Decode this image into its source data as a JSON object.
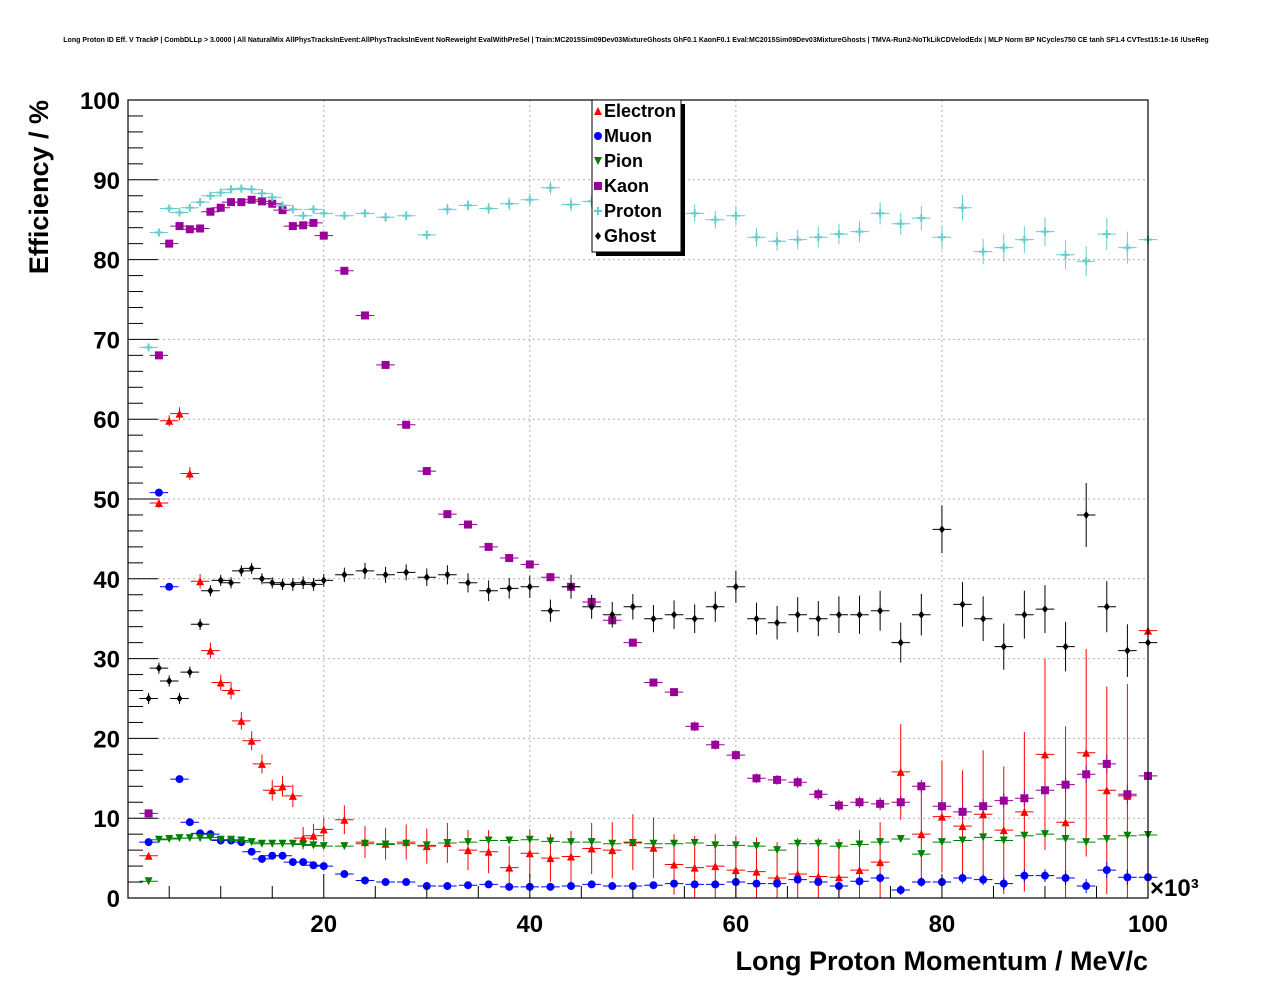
{
  "chart_data": {
    "type": "scatter",
    "title": "Long Proton ID Eff. V TrackP | CombDLLp > 3.0000 | All NaturalMix AllPhysTracksInEvent:AllPhysTracksInEvent NoReweight EvalWithPreSel | Train:MC2015Sim09Dev03MixtureGhosts GhF0.1 KaonF0.1 Eval:MC2015Sim09Dev03MixtureGhosts | TMVA-Run2-NoTkLikCDVelodEdx | MLP Norm BP NCycles750 CE tanh SF1.4 CVTest15:1e-16 !UseReg",
    "xlabel": "Long Proton Momentum / MeV/c",
    "ylabel": "Efficiency / %",
    "x_multiplier": "×10³",
    "xlim": [
      1,
      100
    ],
    "ylim": [
      0,
      100
    ],
    "x_ticks": [
      "20",
      "40",
      "60",
      "80",
      "100"
    ],
    "y_ticks": [
      "0",
      "10",
      "20",
      "30",
      "40",
      "50",
      "60",
      "70",
      "80",
      "90",
      "100"
    ],
    "grid": true,
    "legend_position": "top-center",
    "series": [
      {
        "name": "Electron",
        "color": "#ff0000",
        "marker": "triangle-up",
        "x": [
          3,
          4,
          5,
          6,
          7,
          8,
          9,
          10,
          11,
          12,
          13,
          14,
          15,
          16,
          17,
          18,
          19,
          20,
          22,
          24,
          26,
          28,
          30,
          32,
          34,
          36,
          38,
          40,
          42,
          44,
          46,
          48,
          50,
          52,
          54,
          56,
          58,
          60,
          62,
          64,
          66,
          68,
          70,
          72,
          74,
          76,
          78,
          80,
          82,
          84,
          86,
          88,
          90,
          92,
          94,
          96,
          98,
          100
        ],
        "y": [
          5.3,
          49.5,
          59.8,
          60.7,
          53.2,
          39.7,
          31.0,
          27.0,
          26.0,
          22.2,
          19.7,
          16.8,
          13.5,
          14.0,
          12.8,
          7.5,
          7.8,
          8.6,
          9.8,
          7.0,
          6.8,
          7.0,
          6.5,
          6.9,
          6.0,
          5.8,
          3.8,
          5.6,
          5.0,
          5.2,
          6.2,
          6.0,
          7.0,
          6.3,
          4.2,
          3.8,
          4.0,
          3.5,
          3.3,
          2.5,
          3.0,
          2.7,
          2.6,
          3.5,
          4.5,
          15.8,
          8.0,
          10.2,
          9.0,
          10.5,
          8.5,
          10.8,
          18.0,
          9.5,
          18.2,
          13.5,
          12.8,
          33.5
        ],
        "yerr": [
          0.4,
          0.6,
          0.7,
          0.8,
          0.8,
          0.9,
          1.0,
          1.0,
          1.1,
          1.1,
          1.2,
          1.2,
          1.3,
          1.3,
          1.4,
          1.4,
          1.5,
          1.5,
          1.8,
          2.0,
          2.0,
          2.2,
          2.2,
          2.5,
          2.5,
          2.7,
          2.7,
          3.0,
          3.0,
          3.2,
          3.2,
          3.5,
          3.5,
          3.8,
          3.8,
          4.0,
          4.0,
          4.3,
          4.3,
          4.5,
          4.5,
          4.8,
          4.8,
          5.0,
          5.0,
          6.0,
          6.0,
          7.0,
          7.0,
          8.0,
          8.0,
          10.0,
          12.0,
          12.0,
          13.0,
          13.0,
          14.0,
          14.0
        ]
      },
      {
        "name": "Muon",
        "color": "#0000ff",
        "marker": "circle",
        "x": [
          3,
          4,
          5,
          6,
          7,
          8,
          9,
          10,
          11,
          12,
          13,
          14,
          15,
          16,
          17,
          18,
          19,
          20,
          22,
          24,
          26,
          28,
          30,
          32,
          34,
          36,
          38,
          40,
          42,
          44,
          46,
          48,
          50,
          52,
          54,
          56,
          58,
          60,
          62,
          64,
          66,
          68,
          70,
          72,
          74,
          76,
          78,
          80,
          82,
          84,
          86,
          88,
          90,
          92,
          94,
          96,
          98,
          100
        ],
        "y": [
          7.0,
          50.8,
          39.0,
          14.9,
          9.5,
          8.1,
          8.0,
          7.2,
          7.2,
          7.0,
          5.8,
          4.9,
          5.3,
          5.3,
          4.5,
          4.5,
          4.1,
          4.0,
          3.0,
          2.2,
          2.0,
          2.0,
          1.5,
          1.5,
          1.6,
          1.7,
          1.4,
          1.4,
          1.4,
          1.5,
          1.7,
          1.5,
          1.5,
          1.6,
          1.8,
          1.7,
          1.7,
          2.0,
          1.8,
          1.8,
          2.3,
          2.0,
          1.5,
          2.1,
          2.5,
          1.0,
          2.0,
          2.0,
          2.5,
          2.3,
          1.8,
          2.8,
          2.8,
          2.5,
          1.5,
          3.5,
          2.6,
          2.6
        ],
        "yerr": [
          0.2,
          0.4,
          0.4,
          0.3,
          0.3,
          0.2,
          0.2,
          0.2,
          0.2,
          0.2,
          0.2,
          0.2,
          0.2,
          0.2,
          0.2,
          0.2,
          0.2,
          0.2,
          0.2,
          0.2,
          0.2,
          0.2,
          0.2,
          0.2,
          0.2,
          0.2,
          0.2,
          0.3,
          0.3,
          0.3,
          0.3,
          0.3,
          0.3,
          0.3,
          0.3,
          0.4,
          0.4,
          0.4,
          0.4,
          0.5,
          0.5,
          0.5,
          0.5,
          0.5,
          0.6,
          0.6,
          0.6,
          0.7,
          0.7,
          0.7,
          0.8,
          0.8,
          0.8,
          0.9,
          0.9,
          1.0,
          1.0,
          1.0
        ]
      },
      {
        "name": "Pion",
        "color": "#008000",
        "marker": "triangle-down",
        "x": [
          3,
          4,
          5,
          6,
          7,
          8,
          9,
          10,
          11,
          12,
          13,
          14,
          15,
          16,
          17,
          18,
          19,
          20,
          22,
          24,
          26,
          28,
          30,
          32,
          34,
          36,
          38,
          40,
          42,
          44,
          46,
          48,
          50,
          52,
          54,
          56,
          58,
          60,
          62,
          64,
          66,
          68,
          70,
          72,
          74,
          76,
          78,
          80,
          82,
          84,
          86,
          88,
          90,
          92,
          94,
          96,
          98,
          100
        ],
        "y": [
          2.1,
          7.3,
          7.4,
          7.5,
          7.5,
          7.5,
          7.6,
          7.3,
          7.3,
          7.2,
          7.0,
          6.8,
          6.8,
          6.8,
          6.8,
          6.7,
          6.6,
          6.5,
          6.5,
          6.8,
          6.7,
          6.8,
          6.6,
          6.9,
          7.0,
          7.2,
          7.2,
          7.3,
          7.1,
          7.0,
          7.0,
          6.8,
          6.9,
          6.8,
          6.8,
          6.9,
          6.6,
          6.6,
          6.5,
          6.0,
          6.8,
          6.8,
          6.5,
          6.7,
          7.0,
          7.4,
          5.5,
          7.0,
          7.2,
          7.6,
          7.2,
          7.8,
          8.0,
          7.4,
          7.0,
          7.4,
          7.8,
          7.9
        ],
        "yerr": [
          0.1,
          0.1,
          0.1,
          0.1,
          0.1,
          0.1,
          0.1,
          0.1,
          0.1,
          0.1,
          0.1,
          0.1,
          0.1,
          0.1,
          0.1,
          0.1,
          0.1,
          0.1,
          0.1,
          0.1,
          0.1,
          0.1,
          0.1,
          0.1,
          0.1,
          0.1,
          0.1,
          0.1,
          0.1,
          0.1,
          0.1,
          0.2,
          0.2,
          0.2,
          0.2,
          0.2,
          0.2,
          0.2,
          0.2,
          0.2,
          0.3,
          0.3,
          0.3,
          0.3,
          0.3,
          0.3,
          0.3,
          0.4,
          0.4,
          0.4,
          0.4,
          0.4,
          0.4,
          0.5,
          0.5,
          0.5,
          0.5,
          0.5
        ]
      },
      {
        "name": "Kaon",
        "color": "#990099",
        "marker": "square",
        "x": [
          3,
          4,
          5,
          6,
          7,
          8,
          9,
          10,
          11,
          12,
          13,
          14,
          15,
          16,
          17,
          18,
          19,
          20,
          22,
          24,
          26,
          28,
          30,
          32,
          34,
          36,
          38,
          40,
          42,
          44,
          46,
          48,
          50,
          52,
          54,
          56,
          58,
          60,
          62,
          64,
          66,
          68,
          70,
          72,
          74,
          76,
          78,
          80,
          82,
          84,
          86,
          88,
          90,
          92,
          94,
          96,
          98,
          100
        ],
        "y": [
          10.6,
          68.0,
          82.0,
          84.2,
          83.8,
          83.9,
          86.0,
          86.5,
          87.2,
          87.2,
          87.5,
          87.3,
          87.0,
          86.2,
          84.2,
          84.3,
          84.6,
          83.0,
          78.6,
          73.0,
          66.8,
          59.3,
          53.5,
          48.1,
          46.8,
          44.0,
          42.6,
          41.8,
          40.2,
          39.0,
          37.1,
          34.8,
          32.0,
          27.0,
          25.8,
          21.5,
          19.2,
          17.9,
          15.0,
          14.8,
          14.5,
          13.0,
          11.6,
          12.0,
          11.8,
          12.0,
          14.0,
          11.5,
          10.8,
          11.5,
          12.2,
          12.5,
          13.5,
          14.2,
          15.5,
          16.8,
          13.0,
          15.3
        ],
        "yerr": [
          0.2,
          0.3,
          0.3,
          0.3,
          0.3,
          0.3,
          0.3,
          0.3,
          0.3,
          0.3,
          0.3,
          0.3,
          0.3,
          0.3,
          0.3,
          0.3,
          0.3,
          0.3,
          0.3,
          0.4,
          0.4,
          0.4,
          0.4,
          0.4,
          0.5,
          0.5,
          0.5,
          0.5,
          0.5,
          0.5,
          0.5,
          0.5,
          0.5,
          0.5,
          0.5,
          0.6,
          0.6,
          0.6,
          0.6,
          0.6,
          0.7,
          0.7,
          0.7,
          0.7,
          0.8,
          0.8,
          0.8,
          0.8,
          0.9,
          0.9,
          0.9,
          1.0,
          1.0,
          1.0,
          1.1,
          1.2,
          1.2,
          1.3
        ]
      },
      {
        "name": "Proton",
        "color": "#66cccc",
        "marker": "plus",
        "x": [
          3,
          4,
          5,
          6,
          7,
          8,
          9,
          10,
          11,
          12,
          13,
          14,
          15,
          16,
          17,
          18,
          19,
          20,
          22,
          24,
          26,
          28,
          30,
          32,
          34,
          36,
          38,
          40,
          42,
          44,
          46,
          48,
          50,
          52,
          54,
          56,
          58,
          60,
          62,
          64,
          66,
          68,
          70,
          72,
          74,
          76,
          78,
          80,
          82,
          84,
          86,
          88,
          90,
          92,
          94,
          96,
          98,
          100
        ],
        "y": [
          69.0,
          83.4,
          86.4,
          85.9,
          86.5,
          87.2,
          88.0,
          88.4,
          88.8,
          88.9,
          88.8,
          88.3,
          87.8,
          86.8,
          86.3,
          85.5,
          86.3,
          85.8,
          85.5,
          85.8,
          85.3,
          85.5,
          83.1,
          86.3,
          86.8,
          86.4,
          87.0,
          87.5,
          89.0,
          86.9,
          87.3,
          86.7,
          88.3,
          86.0,
          84.5,
          85.8,
          85.0,
          85.5,
          82.8,
          82.3,
          82.5,
          82.8,
          83.2,
          83.5,
          85.8,
          84.5,
          85.2,
          82.8,
          86.5,
          81.0,
          81.5,
          82.5,
          83.5,
          80.6,
          79.8,
          83.2,
          81.5,
          82.5
        ],
        "yerr": [
          0.5,
          0.5,
          0.5,
          0.5,
          0.5,
          0.5,
          0.5,
          0.5,
          0.5,
          0.5,
          0.5,
          0.5,
          0.5,
          0.5,
          0.5,
          0.5,
          0.5,
          0.5,
          0.5,
          0.5,
          0.6,
          0.6,
          0.6,
          0.7,
          0.7,
          0.7,
          0.8,
          0.8,
          0.8,
          0.9,
          0.9,
          0.9,
          1.0,
          1.0,
          1.0,
          1.1,
          1.1,
          1.1,
          1.2,
          1.2,
          1.2,
          1.3,
          1.3,
          1.3,
          1.4,
          1.4,
          1.5,
          1.5,
          1.6,
          1.6,
          1.7,
          1.7,
          1.8,
          1.8,
          1.9,
          2.0,
          2.0,
          2.0
        ]
      },
      {
        "name": "Ghost",
        "color": "#000000",
        "marker": "diamond",
        "x": [
          3,
          4,
          5,
          6,
          7,
          8,
          9,
          10,
          11,
          12,
          13,
          14,
          15,
          16,
          17,
          18,
          19,
          20,
          22,
          24,
          26,
          28,
          30,
          32,
          34,
          36,
          38,
          40,
          42,
          44,
          46,
          48,
          50,
          52,
          54,
          56,
          58,
          60,
          62,
          64,
          66,
          68,
          70,
          72,
          74,
          76,
          78,
          80,
          82,
          84,
          86,
          88,
          90,
          92,
          94,
          96,
          98,
          100
        ],
        "y": [
          25.0,
          28.8,
          27.2,
          25.0,
          28.3,
          34.3,
          38.5,
          39.8,
          39.5,
          41.0,
          41.3,
          40.0,
          39.5,
          39.3,
          39.3,
          39.5,
          39.3,
          39.8,
          40.5,
          41.0,
          40.5,
          40.8,
          40.2,
          40.5,
          39.5,
          38.5,
          38.8,
          39.0,
          36.0,
          39.0,
          36.5,
          35.5,
          36.5,
          35.0,
          35.5,
          35.0,
          36.5,
          39.0,
          35.0,
          34.5,
          35.5,
          35.0,
          35.5,
          35.5,
          36.0,
          32.0,
          35.5,
          46.2,
          36.8,
          35.0,
          31.5,
          35.5,
          36.2,
          31.5,
          48.0,
          36.5,
          31.0,
          32.0
        ],
        "yerr": [
          0.7,
          0.7,
          0.7,
          0.7,
          0.7,
          0.7,
          0.7,
          0.7,
          0.7,
          0.7,
          0.7,
          0.7,
          0.7,
          0.7,
          0.8,
          0.8,
          0.8,
          0.8,
          0.9,
          1.0,
          1.0,
          1.0,
          1.1,
          1.2,
          1.2,
          1.3,
          1.3,
          1.4,
          1.4,
          1.5,
          1.5,
          1.6,
          1.6,
          1.7,
          1.8,
          1.8,
          1.9,
          2.0,
          2.0,
          2.1,
          2.2,
          2.2,
          2.3,
          2.4,
          2.5,
          2.5,
          2.6,
          3.0,
          2.8,
          2.8,
          2.9,
          3.0,
          3.0,
          3.1,
          4.0,
          3.2,
          3.3,
          3.3
        ]
      }
    ]
  }
}
